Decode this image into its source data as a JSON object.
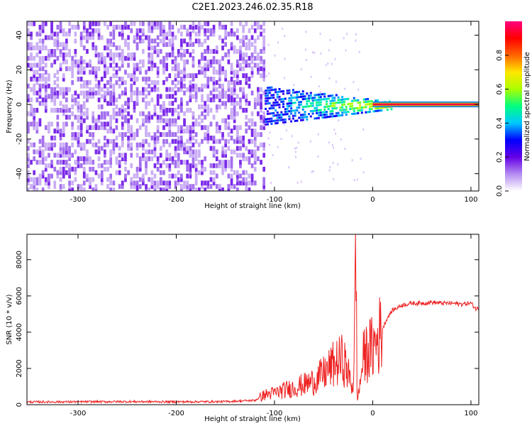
{
  "figure": {
    "title": "C2E1.2023.246.02.35.R18"
  },
  "chart_data": [
    {
      "type": "heatmap",
      "title": "C2E1.2023.246.02.35.R18",
      "xlabel": "Height of straight line (km)",
      "ylabel": "Frequency (Hz)",
      "xlim": [
        -352,
        108
      ],
      "ylim": [
        -50,
        48
      ],
      "xticks": [
        -300,
        -200,
        -100,
        0,
        100
      ],
      "yticks": [
        -40,
        -20,
        0,
        20,
        40
      ],
      "colorbar": {
        "label": "Normalized spectral amplitude",
        "range": [
          0,
          1
        ],
        "ticks": [
          "0.0",
          "0.2",
          "0.4",
          "0.6",
          "0.8"
        ],
        "tick_values": [
          0.0,
          0.2,
          0.4,
          0.6,
          0.8
        ],
        "colormap": [
          "#ffffff",
          "#b48cf0",
          "#6400e6",
          "#0000ff",
          "#00c8ff",
          "#00ff80",
          "#aaff00",
          "#ffe600",
          "#ff6400",
          "#ff0000",
          "#ff0080"
        ]
      },
      "regions": [
        {
          "name": "noise",
          "x": [
            -352,
            -110
          ],
          "freq_range": [
            -50,
            48
          ],
          "amplitude": 0.05
        },
        {
          "name": "transition",
          "x": [
            -110,
            20
          ],
          "freq_center": 0,
          "amplitude_peak": 0.5
        },
        {
          "name": "carrier",
          "x": [
            0,
            108
          ],
          "freq": 0,
          "amplitude": 0.95
        }
      ],
      "grid": false
    },
    {
      "type": "line",
      "xlabel": "Height of straight line (km)",
      "ylabel": "SNR (10 * v/v)",
      "xlim": [
        -352,
        108
      ],
      "ylim": [
        0,
        9400
      ],
      "xticks": [
        -300,
        -200,
        -100,
        0,
        100
      ],
      "yticks": [
        0,
        2000,
        4000,
        6000,
        8000
      ],
      "series": [
        {
          "color": "#ee2222",
          "x": [
            -352,
            -300,
            -250,
            -200,
            -150,
            -120,
            -110,
            -100,
            -90,
            -80,
            -70,
            -60,
            -50,
            -40,
            -30,
            -25,
            -20,
            -18,
            -17,
            -16,
            -15,
            -12,
            -10,
            -5,
            0,
            5,
            10,
            15,
            20,
            30,
            40,
            50,
            60,
            70,
            80,
            90,
            100,
            105,
            108
          ],
          "y": [
            150,
            160,
            170,
            160,
            170,
            240,
            550,
            650,
            800,
            950,
            1100,
            1300,
            1700,
            2200,
            2500,
            1700,
            900,
            5000,
            8800,
            600,
            400,
            1500,
            2500,
            3000,
            3100,
            3600,
            4200,
            4800,
            5200,
            5500,
            5600,
            5600,
            5650,
            5600,
            5600,
            5550,
            5600,
            5300,
            5300
          ]
        }
      ],
      "grid": false
    }
  ]
}
